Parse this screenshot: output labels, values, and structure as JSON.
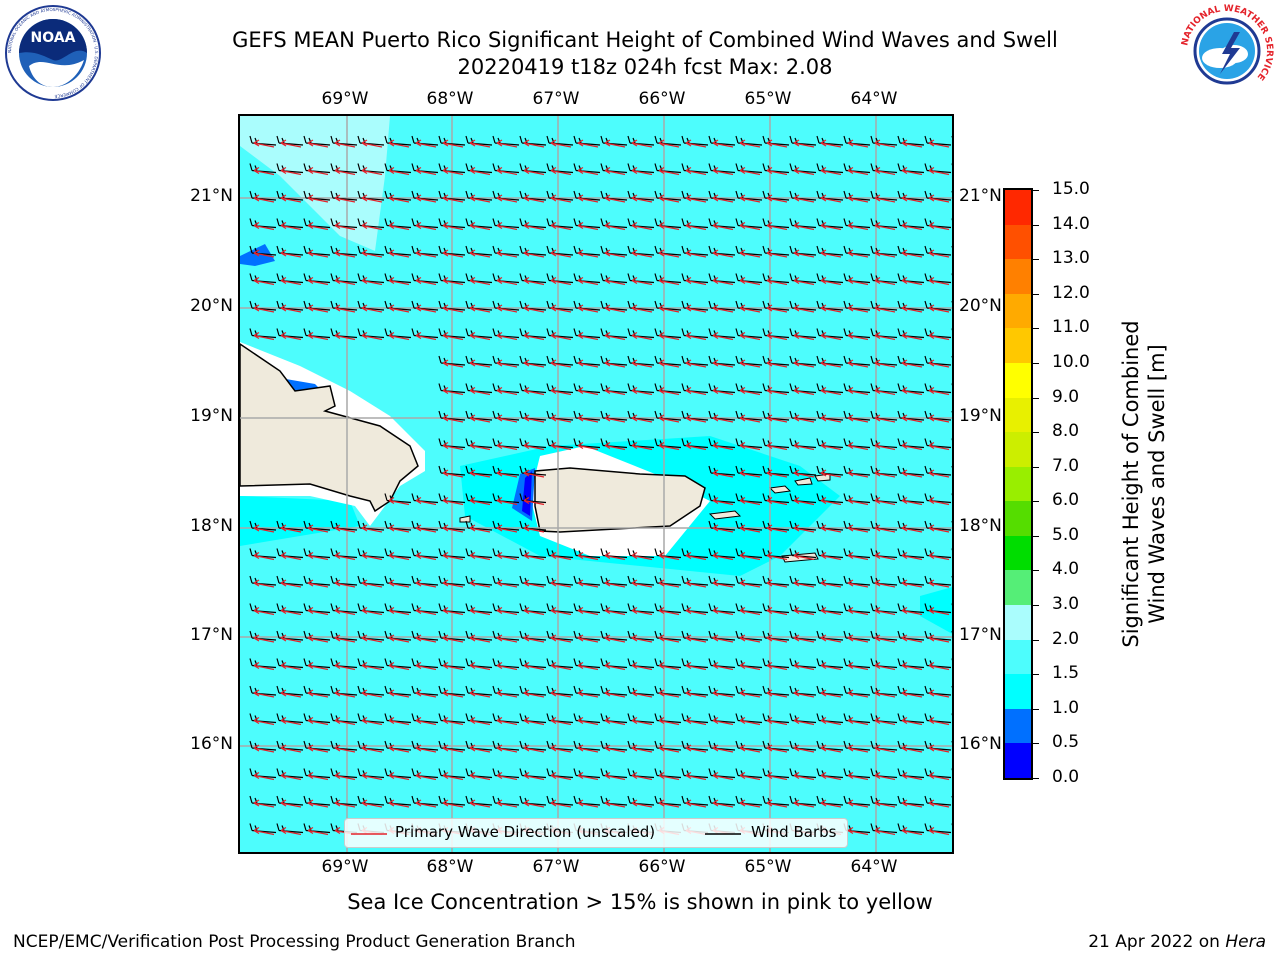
{
  "title": {
    "line1": "GEFS MEAN Puerto Rico Significant Height of Combined Wind Waves and Swell",
    "line2": "20220419 t18z 024h fcst   Max: 2.08"
  },
  "logos": {
    "noaa_text": "NOAA",
    "noaa_ring": "NATIONAL OCEANIC AND ATMOSPHERIC ADMINISTRATION · U.S. DEPARTMENT OF COMMERCE",
    "nws_ring": "NATIONAL WEATHER SERVICE"
  },
  "map": {
    "lon_ticks": [
      "69°W",
      "68°W",
      "67°W",
      "66°W",
      "65°W",
      "64°W"
    ],
    "lat_ticks": [
      "21°N",
      "20°N",
      "19°N",
      "18°N",
      "17°N",
      "16°N"
    ],
    "background_color": "#4dfdfd",
    "land_color": "#efeadc"
  },
  "colorbar": {
    "label_line1": "Significant Height of Combined",
    "label_line2": "Wind Waves and Swell [m]",
    "ticks": [
      "15.0",
      "14.0",
      "13.0",
      "12.0",
      "11.0",
      "10.0",
      "9.0",
      "8.0",
      "7.0",
      "6.0",
      "5.0",
      "4.0",
      "3.0",
      "2.0",
      "1.5",
      "1.0",
      "0.5",
      "0.0"
    ],
    "colors": [
      "#0000ff",
      "#0070ff",
      "#00ffff",
      "#4dfdfd",
      "#aafdfd",
      "#55ee77",
      "#00dd00",
      "#55dd00",
      "#99ee00",
      "#ccee00",
      "#e8f000",
      "#ffff00",
      "#ffc800",
      "#ffaa00",
      "#ff8000",
      "#ff5000",
      "#ff2800"
    ]
  },
  "legend": {
    "wave_label": "Primary Wave Direction (unscaled)",
    "barb_label": "Wind Barbs"
  },
  "sea_ice_note": "Sea Ice Concentration > 15% is shown in pink to yellow",
  "footer": {
    "left": "NCEP/EMC/Verification Post Processing Product Generation Branch",
    "date": "21 Apr 2022 on ",
    "machine": "Hera"
  }
}
